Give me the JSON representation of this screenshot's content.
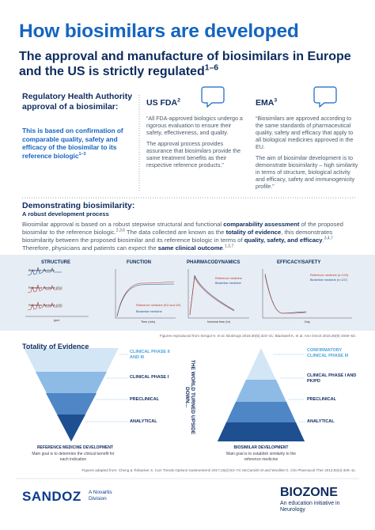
{
  "header": {
    "title": "How biosimilars are developed",
    "subtitle": "The approval and manufacture of biosimilars in Europe and the US is strictly regulated",
    "subtitle_ref": "1–6"
  },
  "approval": {
    "heading": "Regulatory Health Authority approval of a biosimilar:",
    "statement": "This is based on confirmation of comparable quality, safety and efficacy of the biosimilar to its reference biologic",
    "statement_ref": "1–3"
  },
  "fda": {
    "title": "US FDA",
    "ref": "2",
    "paragraphs": [
      "“All FDA-approved biologics undergo a rigorous evaluation to ensure their safety, effectiveness, and quality.",
      "The approval process provides assurance that biosimilars provide the same treatment benefits as their respective reference products.”"
    ]
  },
  "ema": {
    "title": "EMA",
    "ref": "3",
    "paragraphs": [
      "“Biosimilars are approved according to the same standards of pharmaceutical quality, safety and efficacy that apply to all biological medicines approved in the EU.",
      "The aim of biosimilar development is to demonstrate biosimilarity – high similarity in terms of structure, biological activity and efficacy, safety and immunogenicity profile.”"
    ]
  },
  "demonstrating": {
    "heading": "Demonstrating biosimilarity:",
    "subheading": "A robust development process",
    "segments": [
      "Biosimilar approval is based on a robust stepwise structural and functional ",
      "comparability assessment",
      " of the proposed biosimilar to the reference biologic.",
      "2,3,6",
      " The data collected are known as the ",
      "totality of evidence",
      ", this demonstrates biosimilarity between the proposed biosimilar and its reference biologic in terms of ",
      "quality, safety, and efficacy",
      ".",
      "3,4,7",
      " Therefore, physicians and patients can expect the ",
      "same clinical outcome",
      ".",
      "1,3,7"
    ]
  },
  "panels": [
    {
      "title": "STRUCTURE",
      "legend": [
        "Biosimilar medicine",
        "Reference medicine (EU)",
        "Reference medicine (US)"
      ],
      "x_label": "ppm"
    },
    {
      "title": "FUNCTION",
      "legend": [
        "Reference medicine (EU and US)",
        "Biosimilar medicine"
      ],
      "x_label": "Time (min)"
    },
    {
      "title": "PHARMACODYNAMICS",
      "legend": [
        "Reference medicine",
        "Biosimilar medicine"
      ],
      "x_label": "Nominal time (hr)"
    },
    {
      "title": "EFFICACY/SAFETY",
      "legend": [
        "Reference medicine (n=133)",
        "Biosimilar medicine (n=137)"
      ],
      "x_label": "Day"
    }
  ],
  "panels_caption": "Figures reproduced from Sengul H, et al. BioDrugs 2016;30(5):323–31; Blackwell K, et al. Ann Oncol 2015;26(9):1948–53.",
  "totality": {
    "heading": "Totality of Evidence",
    "reference": {
      "levels": [
        "CLINICAL PHASE II AND III",
        "CLINICAL PHASE I",
        "PRECLINICAL",
        "ANALYTICAL"
      ],
      "title": "REFERENCE MEDICINE DEVELOPMENT",
      "goal": "Main goal is to determine the clinical benefit for each indication"
    },
    "middle": "THE WORLD TURNED UPSIDE DOWN...",
    "biosimilar": {
      "levels": [
        "CONFIRMATORY CLINICAL PHASE III",
        "CLINICAL PHASE I AND PK/PD",
        "PRECLINICAL",
        "ANALYTICAL"
      ],
      "title": "BIOSIMILAR DEVELOPMENT",
      "goal": "Main goal is to establish similarity to the reference medicine"
    },
    "caption": "Figures adapted from: Cheng & Tiebacker S. Curr Trends Options Gastroenterol 2017;15(2):63–73; McCamish M and Woollett G. Clin Pharmacol Ther 2013;93(4):406–11."
  },
  "footer": {
    "left_brand": "SANDOZ",
    "left_tagline": "A Novartis Division",
    "right_brand": "BIOZONE",
    "right_tagline": "An education initiative in Neurology"
  }
}
